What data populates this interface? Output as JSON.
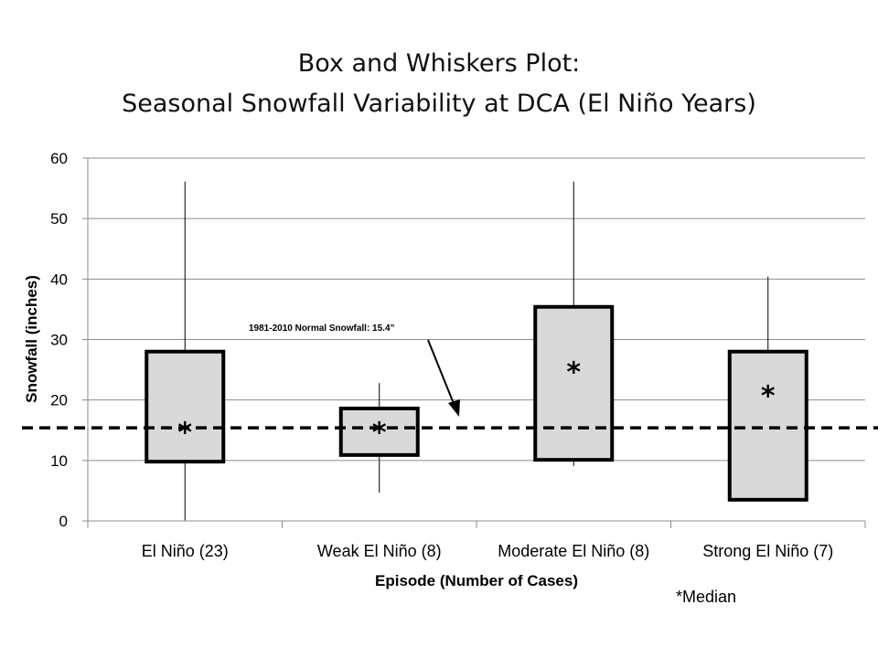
{
  "title_line1": "Box and Whiskers Plot:",
  "title_line2": "Seasonal Snowfall Variability at DCA (El Niño Years)",
  "chart_data": {
    "type": "box",
    "title": "Box and Whiskers Plot: Seasonal Snowfall Variability at DCA (El Niño Years)",
    "xlabel": "Episode (Number of Cases)",
    "ylabel": "Snowfall (inches)",
    "ylim": [
      0,
      60
    ],
    "yticks": [
      0,
      10,
      20,
      30,
      40,
      50,
      60
    ],
    "grid": true,
    "categories": [
      "El Niño (23)",
      "Weak El Niño (8)",
      "Moderate El Niño (8)",
      "Strong El Niño (7)"
    ],
    "boxes": [
      {
        "min": 0.1,
        "q1": 9.8,
        "median": 15.5,
        "q3": 28.0,
        "max": 56.1
      },
      {
        "min": 4.7,
        "q1": 10.9,
        "median": 15.5,
        "q3": 18.6,
        "max": 22.8
      },
      {
        "min": 9.1,
        "q1": 10.1,
        "median": 25.5,
        "q3": 35.4,
        "max": 56.1
      },
      {
        "min": 3.5,
        "q1": 3.5,
        "median": 21.5,
        "q3": 28.0,
        "max": 40.4
      }
    ],
    "reference_line": {
      "value": 15.4,
      "label": "1981-2010  Normal Snowfall: 15.4”",
      "style": "dashed"
    },
    "median_marker": "*",
    "footnote": "*Median"
  }
}
